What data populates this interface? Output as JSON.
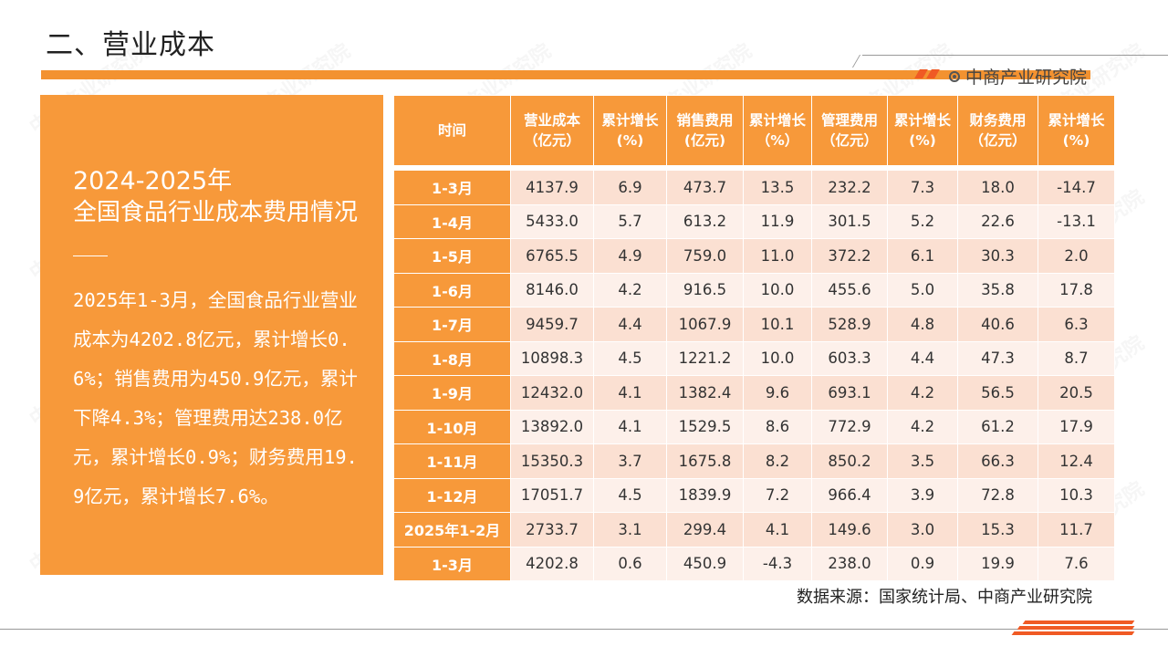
{
  "page": {
    "title": "二、营业成本",
    "brand": "中商产业研究院",
    "source": "数据来源：国家统计局、中商产业研究院",
    "watermark": "中商产业研究院"
  },
  "panel": {
    "year": "2024-2025年",
    "subtitle": "全国食品行业成本费用情况",
    "body": "2025年1-3月，全国食品行业营业成本为4202.8亿元，累计增长0.6%；销售费用为450.9亿元，累计下降4.3%；管理费用达238.0亿元，累计增长0.9%；财务费用19.9亿元，累计增长7.6%。"
  },
  "table": {
    "headers": [
      "时间",
      "营业成本（亿元）",
      "累计增长(%)",
      "销售费用(亿元)",
      "累计增长（%）",
      "管理费用（亿元）",
      "累计增长(%)",
      "财务费用（亿元）",
      "累计增长(%)"
    ],
    "rows": [
      [
        "1-3月",
        "4137.9",
        "6.9",
        "473.7",
        "13.5",
        "232.2",
        "7.3",
        "18.0",
        "-14.7"
      ],
      [
        "1-4月",
        "5433.0",
        "5.7",
        "613.2",
        "11.9",
        "301.5",
        "5.2",
        "22.6",
        "-13.1"
      ],
      [
        "1-5月",
        "6765.5",
        "4.9",
        "759.0",
        "11.0",
        "372.2",
        "6.1",
        "30.3",
        "2.0"
      ],
      [
        "1-6月",
        "8146.0",
        "4.2",
        "916.5",
        "10.0",
        "455.6",
        "5.0",
        "35.8",
        "17.8"
      ],
      [
        "1-7月",
        "9459.7",
        "4.4",
        "1067.9",
        "10.1",
        "528.9",
        "4.8",
        "40.6",
        "6.3"
      ],
      [
        "1-8月",
        "10898.3",
        "4.5",
        "1221.2",
        "10.0",
        "603.3",
        "4.4",
        "47.3",
        "8.7"
      ],
      [
        "1-9月",
        "12432.0",
        "4.1",
        "1382.4",
        "9.6",
        "693.1",
        "4.2",
        "56.5",
        "20.5"
      ],
      [
        "1-10月",
        "13892.0",
        "4.1",
        "1529.5",
        "8.6",
        "772.9",
        "4.2",
        "61.2",
        "17.9"
      ],
      [
        "1-11月",
        "15350.3",
        "3.7",
        "1675.8",
        "8.2",
        "850.2",
        "3.5",
        "66.3",
        "12.4"
      ],
      [
        "1-12月",
        "17051.7",
        "4.5",
        "1839.9",
        "7.2",
        "966.4",
        "3.9",
        "72.8",
        "10.3"
      ],
      [
        "2025年1-2月",
        "2733.7",
        "3.1",
        "299.4",
        "4.1",
        "149.6",
        "3.0",
        "15.3",
        "11.7"
      ],
      [
        "1-3月",
        "4202.8",
        "0.6",
        "450.9",
        "-4.3",
        "238.0",
        "0.9",
        "19.9",
        "7.6"
      ]
    ]
  }
}
